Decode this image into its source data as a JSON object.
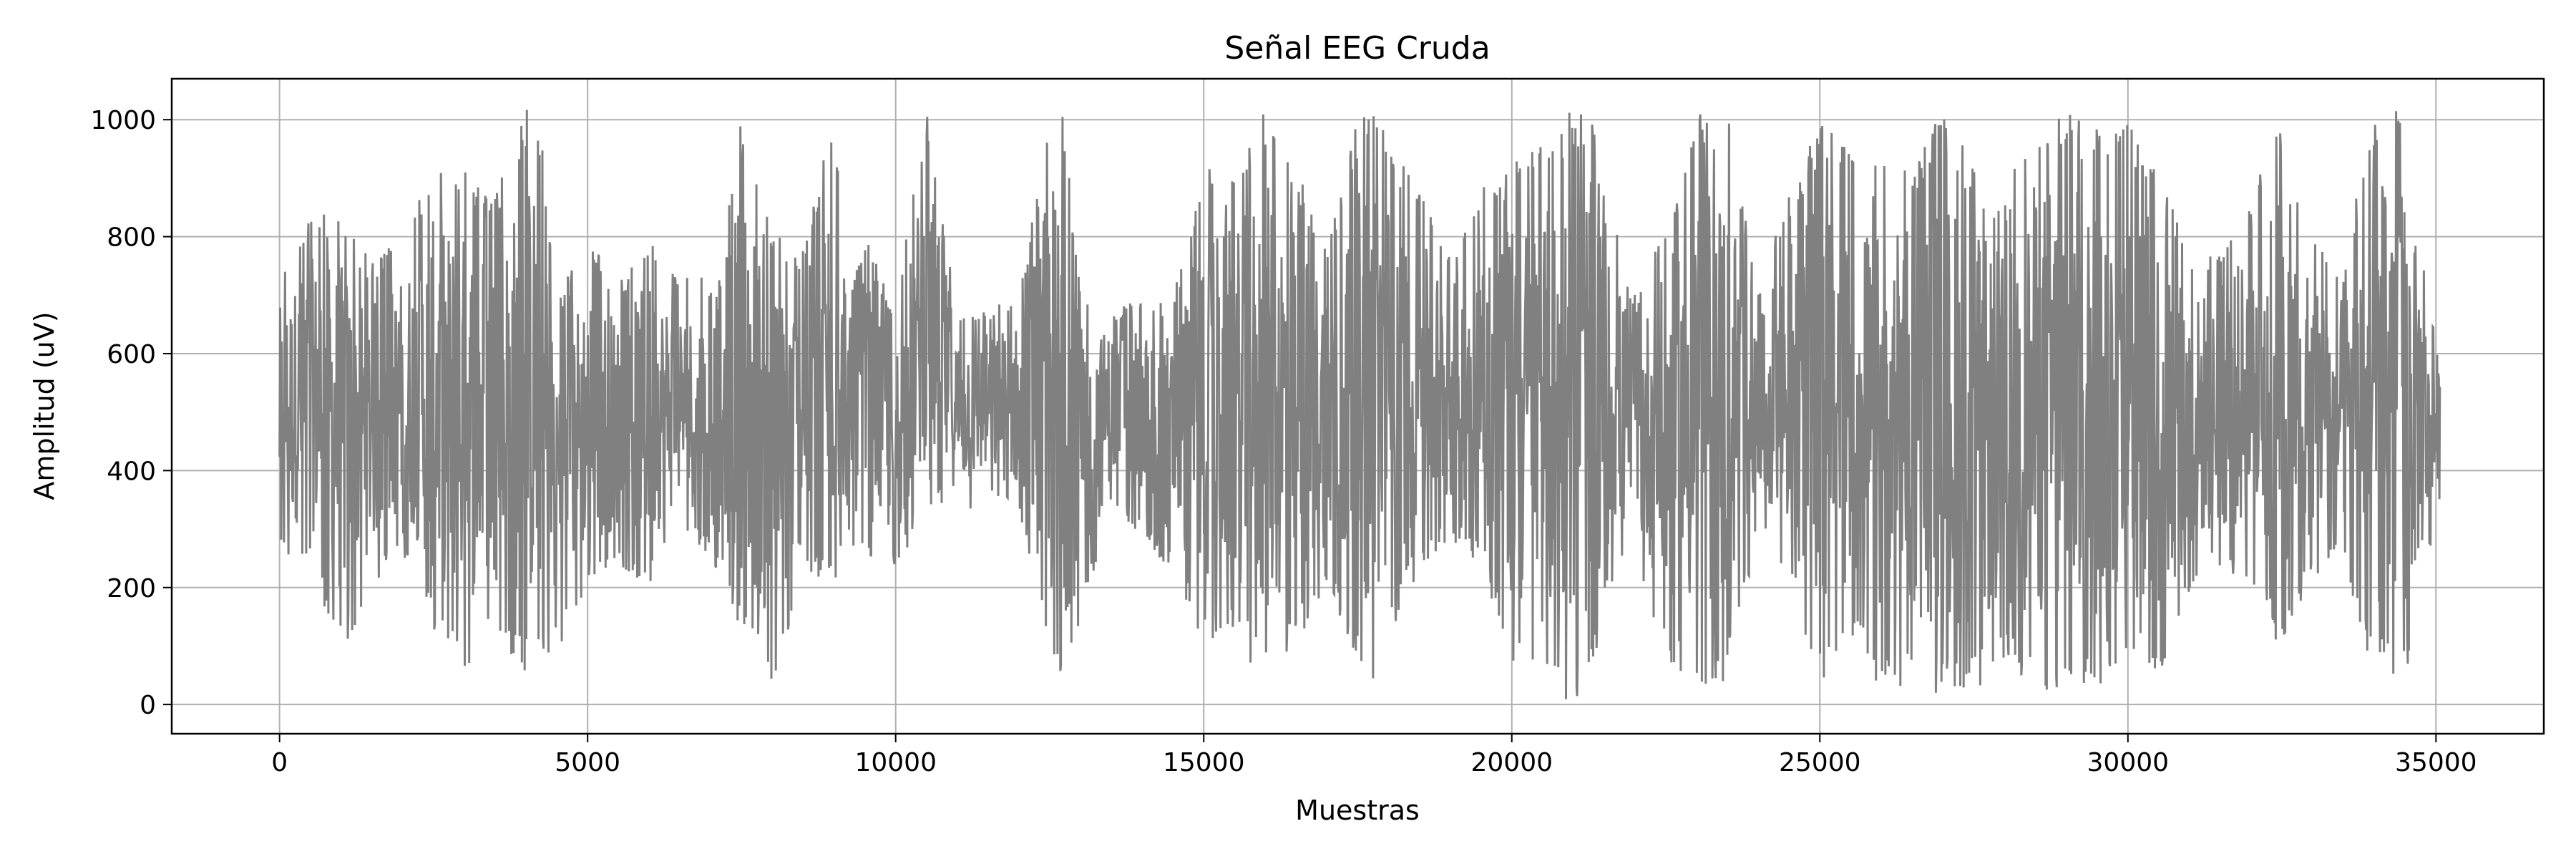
{
  "chart_data": {
    "type": "line",
    "title": "Señal EEG Cruda",
    "xlabel": "Muestras",
    "ylabel": "Amplitud (uV)",
    "xlim": [
      -1750,
      36750
    ],
    "ylim": [
      -50,
      1070
    ],
    "xticks": [
      0,
      5000,
      10000,
      15000,
      20000,
      25000,
      30000,
      35000
    ],
    "yticks": [
      0,
      200,
      400,
      600,
      800,
      1000
    ],
    "grid": true,
    "legend": "none",
    "line_color": "#808080",
    "n_samples": 35065,
    "value_range": [
      0,
      1020
    ],
    "envelope": {
      "x": [
        0,
        500,
        1000,
        1500,
        2000,
        2500,
        3000,
        3500,
        4000,
        4200,
        4500,
        5000,
        5500,
        6000,
        6500,
        7000,
        7500,
        8000,
        8500,
        9000,
        9200,
        9500,
        10000,
        10500,
        11000,
        11500,
        12000,
        12500,
        12700,
        13000,
        13500,
        14000,
        14500,
        15000,
        15500,
        16000,
        16500,
        17000,
        17500,
        17800,
        18000,
        18500,
        19000,
        19500,
        20000,
        20500,
        21000,
        21300,
        21500,
        22000,
        22500,
        23000,
        23500,
        24000,
        24500,
        25000,
        25500,
        26000,
        26500,
        27000,
        27500,
        28000,
        28500,
        29000,
        29500,
        30000,
        30500,
        31000,
        31500,
        32000,
        32500,
        33000,
        33500,
        34000,
        34500,
        35000
      ],
      "upper": [
        740,
        840,
        850,
        760,
        800,
        930,
        920,
        870,
        1020,
        1020,
        700,
        800,
        720,
        800,
        730,
        730,
        1000,
        810,
        780,
        1020,
        700,
        800,
        680,
        1020,
        680,
        680,
        700,
        1020,
        1020,
        720,
        680,
        690,
        700,
        920,
        910,
        1020,
        920,
        800,
        1000,
        1020,
        980,
        880,
        780,
        880,
        930,
        960,
        1020,
        1020,
        880,
        700,
        830,
        1020,
        1020,
        700,
        880,
        1000,
        960,
        920,
        930,
        1020,
        920,
        880,
        1020,
        1020,
        990,
        1000,
        930,
        770,
        790,
        860,
        1020,
        800,
        760,
        1020,
        1020,
        610
      ],
      "lower": [
        250,
        230,
        80,
        200,
        260,
        120,
        60,
        120,
        50,
        40,
        90,
        200,
        240,
        200,
        300,
        250,
        120,
        20,
        210,
        200,
        280,
        250,
        220,
        340,
        320,
        350,
        320,
        50,
        20,
        130,
        350,
        280,
        220,
        100,
        120,
        20,
        100,
        200,
        60,
        20,
        110,
        230,
        280,
        240,
        60,
        20,
        5,
        20,
        180,
        250,
        80,
        20,
        30,
        300,
        200,
        30,
        100,
        20,
        30,
        5,
        20,
        60,
        30,
        5,
        20,
        70,
        40,
        190,
        230,
        210,
        80,
        220,
        240,
        40,
        40,
        300
      ]
    }
  }
}
